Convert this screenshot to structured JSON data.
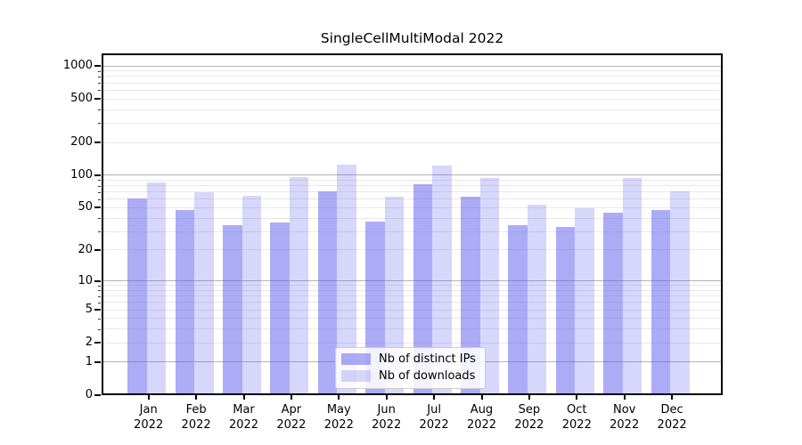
{
  "title": "SingleCellMultiModal 2022",
  "chart_data": {
    "type": "bar",
    "title": "SingleCellMultiModal 2022",
    "categories": [
      "Jan",
      "Feb",
      "Mar",
      "Apr",
      "May",
      "Jun",
      "Jul",
      "Aug",
      "Sep",
      "Oct",
      "Nov",
      "Dec"
    ],
    "category_year": "2022",
    "series": [
      {
        "name": "Nb of distinct IPs",
        "color": "rgba(95,95,238,0.52)",
        "values": [
          59,
          46,
          33,
          35,
          68,
          36,
          80,
          61,
          33,
          32,
          43,
          46
        ]
      },
      {
        "name": "Nb of downloads",
        "color": "rgba(95,95,238,0.25)",
        "values": [
          82,
          67,
          62,
          93,
          120,
          61,
          118,
          91,
          51,
          48,
          91,
          68
        ]
      }
    ],
    "ylabel": "",
    "xlabel": "",
    "yscale": "log1p",
    "ylim": [
      0,
      1300
    ],
    "yticks": [
      0,
      1,
      2,
      5,
      10,
      20,
      50,
      100,
      200,
      500,
      1000
    ],
    "grid_major_values": [
      1,
      10,
      100,
      1000
    ],
    "grid_minor_values": [
      2,
      3,
      4,
      5,
      6,
      7,
      8,
      9,
      20,
      30,
      40,
      50,
      60,
      70,
      80,
      90,
      200,
      300,
      400,
      500,
      600,
      700,
      800,
      900
    ],
    "grid": "on",
    "legend_position": "lower center inside"
  },
  "legend": {
    "items": [
      {
        "label": "Nb of distinct IPs"
      },
      {
        "label": "Nb of downloads"
      }
    ]
  },
  "colors": {
    "bar_distinct_ips": "rgba(95,95,238,0.52)",
    "bar_downloads": "rgba(95,95,238,0.25)",
    "grid_major": "#b2b2b2",
    "grid_minor": "#e8e8e8",
    "spine": "#000000",
    "text": "#000000",
    "background": "#ffffff"
  }
}
